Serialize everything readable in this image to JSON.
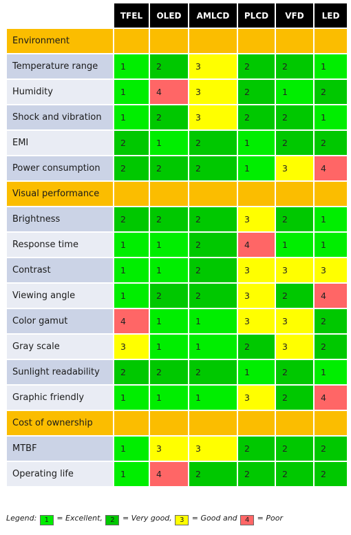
{
  "colors": {
    "header_bg": "#000000",
    "section_bg": "#fbbd00",
    "label_bg_odd": "#cbd3e6",
    "label_bg_even": "#e9ecf4",
    "score_1": "#00ee00",
    "score_2": "#00c800",
    "score_3": "#ffff00",
    "score_4": "#ff6666"
  },
  "chart_data": {
    "type": "table",
    "columns": [
      "TFEL",
      "OLED",
      "AMLCD",
      "PLCD",
      "VFD",
      "LED"
    ],
    "sections": [
      {
        "name": "Environment",
        "rows": [
          {
            "label": "Temperature range",
            "values": [
              1,
              2,
              3,
              2,
              2,
              1
            ]
          },
          {
            "label": "Humidity",
            "values": [
              1,
              4,
              3,
              2,
              1,
              2
            ]
          },
          {
            "label": "Shock and vibration",
            "values": [
              1,
              2,
              3,
              2,
              2,
              1
            ]
          },
          {
            "label": "EMI",
            "values": [
              2,
              1,
              2,
              1,
              2,
              2
            ]
          },
          {
            "label": "Power consumption",
            "values": [
              2,
              2,
              2,
              1,
              3,
              4
            ]
          }
        ]
      },
      {
        "name": "Visual performance",
        "rows": [
          {
            "label": "Brightness",
            "values": [
              2,
              2,
              2,
              3,
              2,
              1
            ]
          },
          {
            "label": "Response time",
            "values": [
              1,
              1,
              2,
              4,
              1,
              1
            ]
          },
          {
            "label": "Contrast",
            "values": [
              1,
              1,
              2,
              3,
              3,
              3
            ]
          },
          {
            "label": "Viewing angle",
            "values": [
              1,
              2,
              2,
              3,
              2,
              4
            ]
          },
          {
            "label": "Color gamut",
            "values": [
              4,
              1,
              1,
              3,
              3,
              2
            ]
          },
          {
            "label": "Gray scale",
            "values": [
              3,
              1,
              1,
              2,
              3,
              2
            ]
          },
          {
            "label": "Sunlight readability",
            "values": [
              2,
              2,
              2,
              1,
              2,
              1
            ]
          },
          {
            "label": "Graphic friendly",
            "values": [
              1,
              1,
              1,
              3,
              2,
              4
            ]
          }
        ]
      },
      {
        "name": "Cost of ownership",
        "rows": [
          {
            "label": "MTBF",
            "values": [
              1,
              3,
              3,
              2,
              2,
              2
            ]
          },
          {
            "label": "Operating life",
            "values": [
              1,
              4,
              2,
              2,
              2,
              2
            ]
          }
        ]
      }
    ],
    "legend": {
      "prefix": "Legend:",
      "items": [
        {
          "value": "1",
          "label": "= Excellent,"
        },
        {
          "value": "2",
          "label": "= Very good,"
        },
        {
          "value": "3",
          "label": "= Good and"
        },
        {
          "value": "4",
          "label": "= Poor"
        }
      ]
    }
  }
}
